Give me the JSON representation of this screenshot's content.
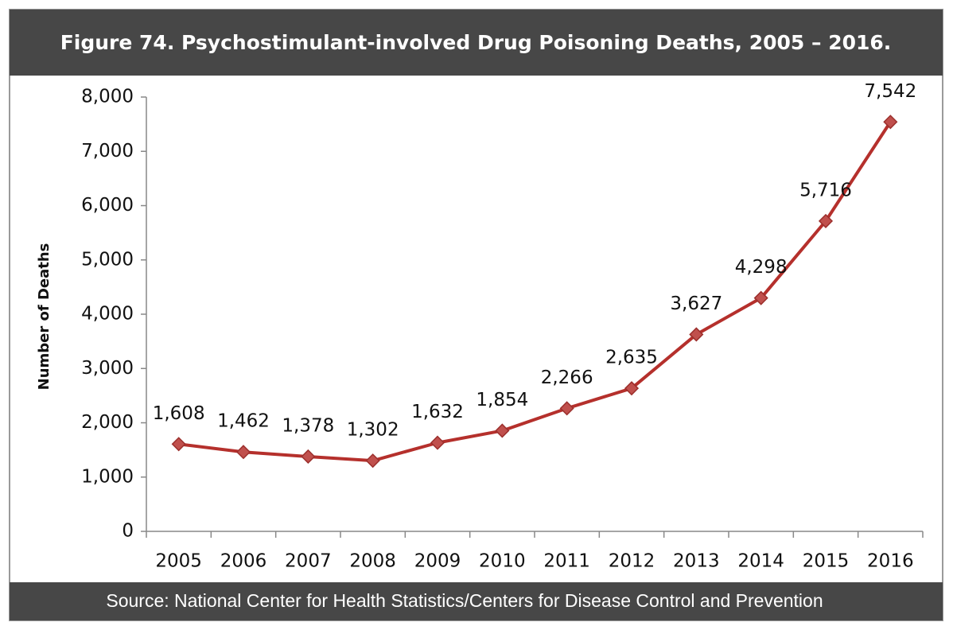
{
  "chart_data": {
    "type": "line",
    "title": "Figure 74. Psychostimulant-involved Drug Poisoning Deaths, 2005 – 2016.",
    "source": "Source:  National Center for Health Statistics/Centers for Disease Control and Prevention",
    "y_label": "Number of Deaths",
    "categories": [
      "2005",
      "2006",
      "2007",
      "2008",
      "2009",
      "2010",
      "2011",
      "2012",
      "2013",
      "2014",
      "2015",
      "2016"
    ],
    "series": [
      {
        "name": "Deaths",
        "color": "#b5302c",
        "values": [
          1608,
          1462,
          1378,
          1302,
          1632,
          1854,
          2266,
          2635,
          3627,
          4298,
          5716,
          7542
        ],
        "value_labels": [
          "1,608",
          "1,462",
          "1,378",
          "1,302",
          "1,632",
          "1,854",
          "2,266",
          "2,635",
          "3,627",
          "4,298",
          "5,716",
          "7,542"
        ]
      }
    ],
    "ylim": [
      0,
      8000
    ],
    "yticks": [
      0,
      {
        "value": 1000,
        "label": "1,000"
      },
      {
        "value": 2000,
        "label": "2,000"
      },
      {
        "value": 3000,
        "label": "3,000"
      },
      {
        "value": 4000,
        "label": "4,000"
      },
      {
        "value": 5000,
        "label": "5,000"
      },
      {
        "value": 6000,
        "label": "6,000"
      },
      {
        "value": 7000,
        "label": "7,000"
      },
      {
        "value": 8000,
        "label": "8,000"
      }
    ],
    "grid": false
  }
}
